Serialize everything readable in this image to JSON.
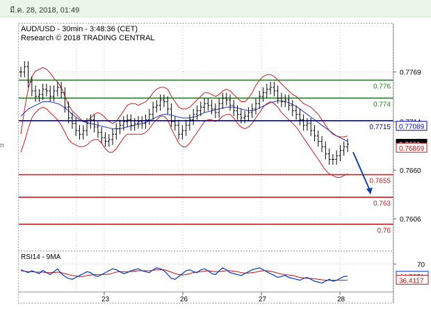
{
  "header": {
    "timestamp": "มี.ค. 28, 2018, 01:49"
  },
  "colors": {
    "price": "#000000",
    "bollinger": "#d11a1a",
    "ma": "#1f2fd6",
    "resistance": "#168a16",
    "pivot": "#0000cc",
    "support": "#d11a1a",
    "arrow": "#1440a0",
    "rsi": "#0033cc",
    "rsi_ma": "#c01010"
  },
  "chart_data": [
    {
      "type": "line",
      "title": "AUD/USD - 30min - 3:48:36 (CET)",
      "subtitle": "Research © 2018 TRADING CENTRAL",
      "ylim": [
        0.7583,
        0.7795
      ],
      "yticks": [
        0.7769,
        0.7714,
        0.766,
        0.7606
      ],
      "xticks": [
        "23",
        "26",
        "27",
        "28"
      ],
      "levels": [
        {
          "value": 0.776,
          "label": "0.776",
          "kind": "resistance"
        },
        {
          "value": 0.774,
          "label": "0.774",
          "kind": "resistance"
        },
        {
          "value": 0.7715,
          "label": "0.7715",
          "kind": "pivot"
        },
        {
          "value": 0.7655,
          "label": "0.7655",
          "kind": "support"
        },
        {
          "value": 0.763,
          "label": "0.763",
          "kind": "support"
        },
        {
          "value": 0.76,
          "label": "0.76",
          "kind": "support"
        }
      ],
      "price_tags": [
        {
          "label": "0.77089",
          "value": 0.77089
        },
        {
          "label": "0.7689",
          "value": 0.7689
        },
        {
          "label": "0.76869",
          "value": 0.76869
        }
      ],
      "series": [
        {
          "values": [
            0.7769,
            0.7775,
            0.7758,
            0.7748,
            0.7742,
            0.7744,
            0.775,
            0.7748,
            0.7742,
            0.7748,
            0.7752,
            0.7746,
            0.773,
            0.7718,
            0.7712,
            0.7704,
            0.77,
            0.7704,
            0.7712,
            0.7716,
            0.7708,
            0.7702,
            0.7696,
            0.7692,
            0.7694,
            0.77,
            0.7706,
            0.771,
            0.7714,
            0.7716,
            0.771,
            0.7712,
            0.7714,
            0.7712,
            0.7716,
            0.7722,
            0.773,
            0.7732,
            0.7738,
            0.7736,
            0.7728,
            0.7714,
            0.771,
            0.77,
            0.7704,
            0.771,
            0.7716,
            0.7722,
            0.7726,
            0.773,
            0.7734,
            0.7732,
            0.7728,
            0.7724,
            0.7734,
            0.774,
            0.7738,
            0.7732,
            0.7726,
            0.7722,
            0.7718,
            0.772,
            0.7724,
            0.7728,
            0.7734,
            0.7742,
            0.7746,
            0.775,
            0.7752,
            0.7748,
            0.774,
            0.7736,
            0.7738,
            0.7732,
            0.7726,
            0.7722,
            0.7716,
            0.771,
            0.7712,
            0.7704,
            0.7698,
            0.7692,
            0.7686,
            0.7678,
            0.7672,
            0.7672,
            0.7676,
            0.7682,
            0.7686,
            0.7689
          ]
        },
        {
          "values": [
            0.77,
            0.7728,
            0.775,
            0.7764,
            0.777,
            0.7772,
            0.7774,
            0.7772,
            0.7768,
            0.7762,
            0.7758,
            0.7752,
            0.7742,
            0.7732,
            0.7726,
            0.7722,
            0.7718,
            0.7714,
            0.7714,
            0.7718,
            0.7722,
            0.7724,
            0.7722,
            0.7718,
            0.7714,
            0.7712,
            0.7714,
            0.772,
            0.7726,
            0.7732,
            0.7734,
            0.7734,
            0.7732,
            0.7734,
            0.7736,
            0.774,
            0.7746,
            0.775,
            0.7752,
            0.7752,
            0.775,
            0.7742,
            0.7736,
            0.773,
            0.7728,
            0.7728,
            0.773,
            0.7734,
            0.7738,
            0.7742,
            0.7746,
            0.7746,
            0.7744,
            0.7742,
            0.7744,
            0.7748,
            0.775,
            0.7748,
            0.7744,
            0.774,
            0.7736,
            0.7736,
            0.774,
            0.7746,
            0.7754,
            0.776,
            0.7764,
            0.7766,
            0.7766,
            0.7764,
            0.776,
            0.7756,
            0.7752,
            0.7748,
            0.7744,
            0.7742,
            0.7738,
            0.7734,
            0.7732,
            0.773,
            0.7726,
            0.7722,
            0.7716,
            0.771,
            0.7704,
            0.77,
            0.7698,
            0.7697,
            0.7697,
            0.7698
          ]
        },
        {
          "values": [
            0.768,
            0.7692,
            0.7706,
            0.7718,
            0.7724,
            0.7728,
            0.773,
            0.7728,
            0.7724,
            0.772,
            0.7716,
            0.771,
            0.7702,
            0.7694,
            0.769,
            0.7688,
            0.7686,
            0.7686,
            0.7688,
            0.7692,
            0.7694,
            0.7694,
            0.769,
            0.7684,
            0.768,
            0.768,
            0.7684,
            0.769,
            0.7696,
            0.77,
            0.77,
            0.77,
            0.77,
            0.77,
            0.7702,
            0.7706,
            0.7712,
            0.7716,
            0.772,
            0.772,
            0.7716,
            0.7706,
            0.7698,
            0.769,
            0.7686,
            0.7686,
            0.769,
            0.7696,
            0.7702,
            0.7708,
            0.7714,
            0.7716,
            0.7716,
            0.7714,
            0.7716,
            0.772,
            0.7722,
            0.7722,
            0.7718,
            0.7712,
            0.7708,
            0.7706,
            0.7708,
            0.7712,
            0.7718,
            0.7724,
            0.773,
            0.7734,
            0.7736,
            0.7734,
            0.773,
            0.7724,
            0.772,
            0.7716,
            0.7712,
            0.7708,
            0.7702,
            0.7696,
            0.769,
            0.7684,
            0.7678,
            0.7672,
            0.7666,
            0.766,
            0.7656,
            0.7654,
            0.7652,
            0.7652,
            0.7654,
            0.7656
          ]
        },
        {
          "values": [
            0.772,
            0.7724,
            0.7728,
            0.773,
            0.7732,
            0.7734,
            0.7736,
            0.7736,
            0.7736,
            0.7735,
            0.7734,
            0.7732,
            0.7729,
            0.7726,
            0.7722,
            0.7719,
            0.7716,
            0.7714,
            0.7713,
            0.7712,
            0.7711,
            0.771,
            0.7709,
            0.7708,
            0.7707,
            0.7706,
            0.7706,
            0.7706,
            0.7707,
            0.7708,
            0.7709,
            0.771,
            0.7711,
            0.7712,
            0.7713,
            0.7715,
            0.7717,
            0.7719,
            0.7721,
            0.7722,
            0.7722,
            0.7721,
            0.772,
            0.7719,
            0.7718,
            0.7718,
            0.7718,
            0.7719,
            0.772,
            0.7722,
            0.7724,
            0.7725,
            0.7726,
            0.7727,
            0.7728,
            0.7729,
            0.773,
            0.773,
            0.773,
            0.7729,
            0.7728,
            0.7727,
            0.7726,
            0.7726,
            0.7727,
            0.7729,
            0.7731,
            0.7733,
            0.7735,
            0.7736,
            0.7737,
            0.7737,
            0.7736,
            0.7735,
            0.7733,
            0.7731,
            0.7728,
            0.7725,
            0.7722,
            0.7719,
            0.7716,
            0.7713,
            0.771,
            0.7707,
            0.7704,
            0.7701,
            0.7698,
            0.7696,
            0.7694,
            0.7692
          ]
        }
      ],
      "arrow": {
        "from": 0.768,
        "to": 0.763
      }
    },
    {
      "type": "line",
      "title": "RSI14 - 9MA",
      "ylim": [
        15,
        85
      ],
      "yticks": [
        70
      ],
      "tags": [
        {
          "label": "44.5271",
          "value": 44.5271
        },
        {
          "label": "36.4117",
          "value": 36.4117
        }
      ],
      "series": [
        {
          "values": [
            58,
            55,
            52,
            56,
            53,
            50,
            57,
            52,
            48,
            54,
            60,
            50,
            44,
            40,
            38,
            42,
            46,
            50,
            54,
            52,
            46,
            44,
            48,
            52,
            56,
            60,
            58,
            54,
            50,
            52,
            56,
            58,
            60,
            56,
            54,
            52,
            58,
            62,
            60,
            56,
            48,
            40,
            38,
            44,
            50,
            56,
            58,
            54,
            52,
            58,
            60,
            56,
            50,
            48,
            56,
            62,
            58,
            52,
            50,
            48,
            46,
            50,
            54,
            58,
            60,
            62,
            58,
            54,
            50,
            46,
            42,
            44,
            46,
            42,
            40,
            38,
            36,
            40,
            42,
            38,
            34,
            32,
            30,
            34,
            38,
            34,
            36,
            40,
            44,
            44.5
          ]
        },
        {
          "values": [
            56,
            55,
            54,
            54,
            53,
            53,
            53,
            52,
            52,
            52,
            53,
            52,
            50,
            48,
            46,
            45,
            44,
            44,
            46,
            47,
            48,
            48,
            48,
            48,
            49,
            51,
            53,
            54,
            54,
            54,
            54,
            55,
            56,
            56,
            56,
            56,
            57,
            58,
            58,
            58,
            56,
            53,
            50,
            48,
            47,
            48,
            50,
            52,
            53,
            54,
            55,
            56,
            55,
            54,
            54,
            55,
            56,
            56,
            55,
            54,
            52,
            51,
            51,
            52,
            53,
            55,
            56,
            56,
            55,
            53,
            51,
            49,
            48,
            47,
            46,
            44,
            42,
            41,
            40,
            40,
            39,
            38,
            37,
            36,
            36,
            36,
            36,
            36,
            36,
            36.4
          ]
        }
      ]
    }
  ]
}
